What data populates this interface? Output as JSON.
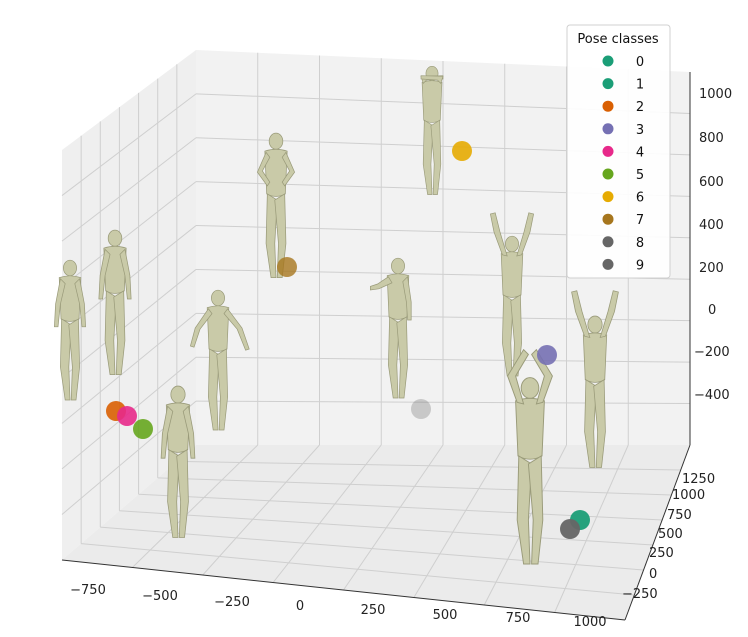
{
  "chart_data": {
    "type": "scatter",
    "projection": "3d",
    "grid": true,
    "legend_placement": "top-right",
    "legend": {
      "title": "Pose classes",
      "entries": [
        {
          "label": "0",
          "color": "#1b9e77"
        },
        {
          "label": "1",
          "color": "#1b9e77"
        },
        {
          "label": "2",
          "color": "#d95f02"
        },
        {
          "label": "3",
          "color": "#7570b3"
        },
        {
          "label": "4",
          "color": "#e7298a"
        },
        {
          "label": "5",
          "color": "#66a61e"
        },
        {
          "label": "6",
          "color": "#e6ab02"
        },
        {
          "label": "7",
          "color": "#a6761d"
        },
        {
          "label": "8",
          "color": "#666666"
        },
        {
          "label": "9",
          "color": "#666666"
        }
      ]
    },
    "axes": {
      "x": {
        "ticks": [
          "−750",
          "−500",
          "−250",
          "0",
          "250",
          "500",
          "750",
          "1000"
        ]
      },
      "y": {
        "ticks": [
          "−250",
          "0",
          "250",
          "500",
          "750",
          "1000",
          "1250"
        ]
      },
      "z": {
        "ticks": [
          "−400",
          "−200",
          "0",
          "200",
          "400",
          "600",
          "800",
          "1000"
        ]
      }
    },
    "points": [
      {
        "class": "6",
        "color": "#e6ab02",
        "alpha": 0.9
      },
      {
        "class": "7",
        "color": "#a6761d",
        "alpha": 0.8
      },
      {
        "class": "3",
        "color": "#7570b3",
        "alpha": 0.9
      },
      {
        "class": "9",
        "color": "#666666",
        "alpha": 0.3
      },
      {
        "class": "2",
        "color": "#d95f02",
        "alpha": 0.9
      },
      {
        "class": "4",
        "color": "#e7298a",
        "alpha": 0.9
      },
      {
        "class": "5",
        "color": "#66a61e",
        "alpha": 0.9
      },
      {
        "class": "1",
        "color": "#1b9e77",
        "alpha": 0.95
      },
      {
        "class": "8",
        "color": "#666666",
        "alpha": 0.95
      }
    ],
    "figure_color": "#c9caa8"
  }
}
